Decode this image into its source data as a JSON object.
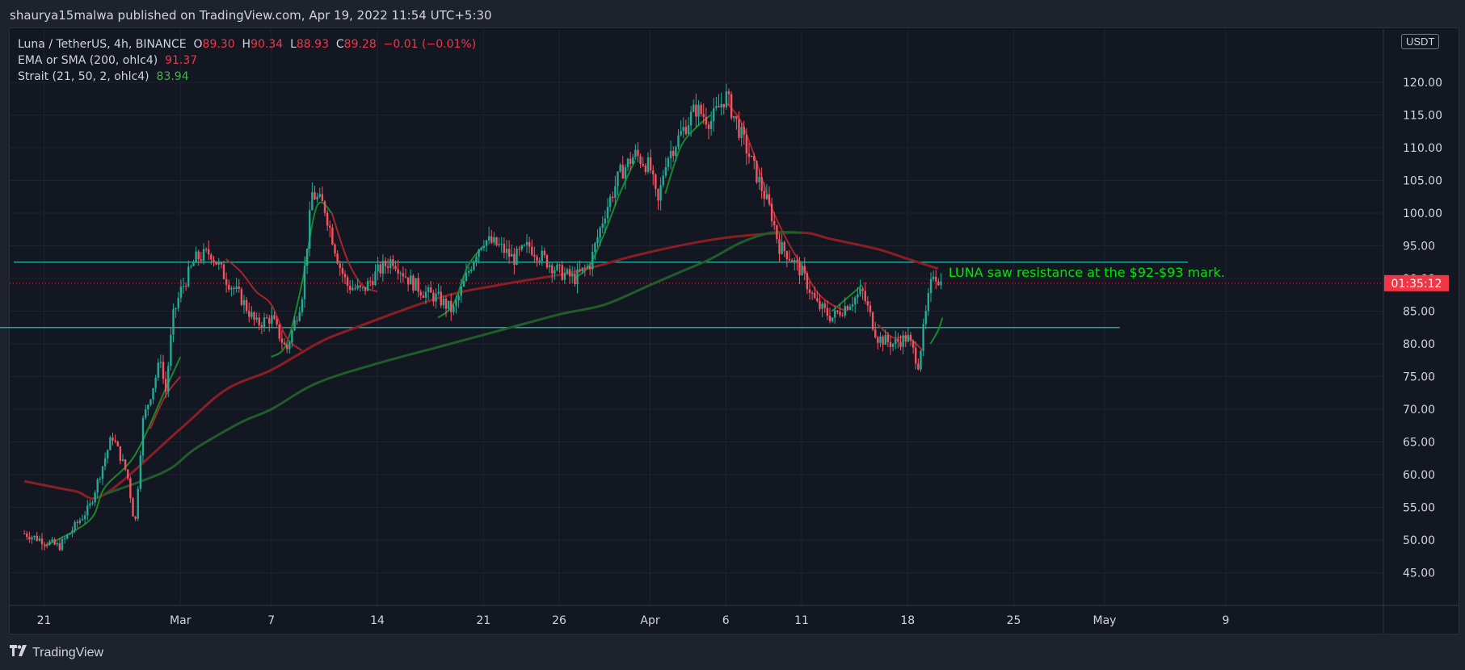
{
  "header": {
    "published": "shaurya15malwa published on TradingView.com, Apr 19, 2022 11:54 UTC+5:30"
  },
  "legend": {
    "symbol": "Luna / TetherUS, 4h, BINANCE",
    "ohlc": {
      "o_label": "O",
      "o": "89.30",
      "h_label": "H",
      "h": "90.34",
      "l_label": "L",
      "l": "88.93",
      "c_label": "C",
      "c": "89.28",
      "change": "−0.01 (−0.01%)"
    },
    "ema_label": "EMA or SMA (200, ohlc4)",
    "ema_value": "91.37",
    "strait_label": "Strait (21, 50, 2, ohlc4)",
    "strait_value": "83.94"
  },
  "price_axis": {
    "currency": "USDT",
    "current_label": "01:35:12"
  },
  "annotation": {
    "text": "LUNA saw resistance at the $92-$93 mark."
  },
  "footer": {
    "brand": "TradingView"
  },
  "colors": {
    "up": "#22ab94",
    "down": "#f7525f",
    "ema": "#8b1e24",
    "slow": "#1f5e2a",
    "fast": "#17872b",
    "level": "#26a69a",
    "annotation": "#00e600",
    "current": "#f23645"
  },
  "chart_data": {
    "type": "candlestick",
    "title": "Luna / TetherUS, 4h, BINANCE",
    "ylim": [
      40,
      125
    ],
    "y_ticks": [
      "45.00",
      "50.00",
      "55.00",
      "60.00",
      "65.00",
      "70.00",
      "75.00",
      "80.00",
      "85.00",
      "90.00",
      "95.00",
      "100.00",
      "105.00",
      "110.00",
      "115.00",
      "120.00"
    ],
    "x_ticks": [
      {
        "label": "21",
        "day": -8
      },
      {
        "label": "Mar",
        "day": 1
      },
      {
        "label": "7",
        "day": 7
      },
      {
        "label": "14",
        "day": 14
      },
      {
        "label": "21",
        "day": 21
      },
      {
        "label": "26",
        "day": 26
      },
      {
        "label": "Apr",
        "day": 32
      },
      {
        "label": "6",
        "day": 37
      },
      {
        "label": "11",
        "day": 42
      },
      {
        "label": "18",
        "day": 49
      },
      {
        "label": "25",
        "day": 56
      },
      {
        "label": "May",
        "day": 62
      },
      {
        "label": "9",
        "day": 70
      }
    ],
    "x_unit": "days since Mar 1, 2022",
    "price_path": [
      [
        -9.3,
        51
      ],
      [
        -7,
        49
      ],
      [
        -5,
        55
      ],
      [
        -3.5,
        66
      ],
      [
        -2.5,
        60
      ],
      [
        -2,
        52
      ],
      [
        -1.5,
        68
      ],
      [
        -0.5,
        76
      ],
      [
        -0.3,
        78
      ],
      [
        0,
        72
      ],
      [
        0.5,
        84
      ],
      [
        1,
        88
      ],
      [
        2,
        93
      ],
      [
        3,
        94
      ],
      [
        4,
        90
      ],
      [
        5,
        87
      ],
      [
        6,
        83
      ],
      [
        7,
        84
      ],
      [
        8,
        79
      ],
      [
        9,
        87
      ],
      [
        9.7,
        103
      ],
      [
        10.5,
        101
      ],
      [
        11.5,
        92
      ],
      [
        12,
        89
      ],
      [
        13,
        88
      ],
      [
        14,
        91
      ],
      [
        15,
        93
      ],
      [
        16,
        90
      ],
      [
        17,
        88
      ],
      [
        18,
        87
      ],
      [
        19,
        85
      ],
      [
        20,
        91
      ],
      [
        20.5,
        94
      ],
      [
        21,
        96
      ],
      [
        22,
        95
      ],
      [
        23,
        93
      ],
      [
        24,
        95
      ],
      [
        25,
        93
      ],
      [
        26,
        91
      ],
      [
        27,
        90
      ],
      [
        28,
        92
      ],
      [
        29,
        100
      ],
      [
        30,
        106
      ],
      [
        31,
        109
      ],
      [
        32,
        107
      ],
      [
        32.5,
        101
      ],
      [
        33,
        108
      ],
      [
        34,
        112
      ],
      [
        35,
        116
      ],
      [
        36,
        114
      ],
      [
        37,
        118
      ],
      [
        38,
        112
      ],
      [
        39,
        106
      ],
      [
        40,
        100
      ],
      [
        40.5,
        95
      ],
      [
        41,
        94
      ],
      [
        42,
        91
      ],
      [
        43,
        86
      ],
      [
        44,
        84
      ],
      [
        45,
        86
      ],
      [
        46,
        88
      ],
      [
        47,
        81
      ],
      [
        48,
        80
      ],
      [
        49,
        81
      ],
      [
        49.7,
        77
      ],
      [
        50.3,
        86
      ],
      [
        50.7,
        91
      ],
      [
        51.2,
        89.3
      ]
    ],
    "ema200": [
      [
        -9.3,
        59
      ],
      [
        -6,
        57.5
      ],
      [
        -4,
        57
      ],
      [
        1,
        67
      ],
      [
        4,
        73
      ],
      [
        7,
        76
      ],
      [
        10,
        80
      ],
      [
        12,
        82
      ],
      [
        18,
        87
      ],
      [
        22,
        89
      ],
      [
        27,
        91
      ],
      [
        31,
        93.5
      ],
      [
        35,
        95.5
      ],
      [
        38,
        96.5
      ],
      [
        42,
        97
      ],
      [
        44,
        96
      ],
      [
        47,
        94.5
      ],
      [
        49,
        93
      ],
      [
        51,
        91.5
      ]
    ],
    "slow_ma": [
      [
        -4,
        57
      ],
      [
        0,
        60.5
      ],
      [
        2,
        64
      ],
      [
        5,
        68
      ],
      [
        7,
        70
      ],
      [
        10,
        74
      ],
      [
        14,
        77
      ],
      [
        18,
        79.5
      ],
      [
        22,
        82
      ],
      [
        26,
        84.5
      ],
      [
        29,
        86
      ],
      [
        32,
        89
      ],
      [
        34,
        91
      ],
      [
        36,
        93
      ],
      [
        38,
        95.5
      ],
      [
        40,
        97
      ],
      [
        42,
        97
      ]
    ],
    "fast_ma_segments": [
      [
        [
          -8,
          49
        ],
        [
          -5,
          53
        ],
        [
          -4,
          58
        ],
        [
          -2,
          63
        ],
        [
          0,
          73
        ],
        [
          1,
          78
        ]
      ],
      [
        [
          7,
          78
        ],
        [
          8,
          80
        ],
        [
          9,
          89
        ],
        [
          10,
          101
        ],
        [
          11,
          100
        ]
      ],
      [
        [
          18,
          84
        ],
        [
          19,
          86
        ],
        [
          20,
          92
        ],
        [
          21,
          95
        ]
      ],
      [
        [
          27,
          90
        ],
        [
          28,
          92
        ],
        [
          29,
          97
        ],
        [
          30,
          103
        ],
        [
          31,
          108
        ]
      ],
      [
        [
          33,
          103
        ],
        [
          34,
          110
        ],
        [
          35,
          113
        ],
        [
          36,
          115
        ]
      ],
      [
        [
          44,
          85
        ],
        [
          45,
          87
        ],
        [
          46,
          89
        ]
      ],
      [
        [
          50.5,
          80
        ],
        [
          51,
          82
        ],
        [
          51.3,
          84
        ]
      ]
    ],
    "red_ma_segments": [
      [
        [
          -1,
          67
        ],
        [
          0,
          72
        ],
        [
          1,
          75
        ]
      ],
      [
        [
          4,
          93
        ],
        [
          5,
          91
        ],
        [
          6,
          88
        ],
        [
          7,
          86
        ],
        [
          8,
          81
        ],
        [
          9,
          79
        ]
      ],
      [
        [
          11,
          100
        ],
        [
          12,
          93
        ],
        [
          13,
          89
        ],
        [
          14,
          88
        ]
      ],
      [
        [
          37,
          117
        ],
        [
          38,
          114
        ],
        [
          39,
          108
        ],
        [
          40,
          101
        ],
        [
          41,
          96
        ],
        [
          42,
          92
        ],
        [
          43,
          88
        ],
        [
          44,
          86
        ],
        [
          45,
          85
        ]
      ],
      [
        [
          47,
          83
        ],
        [
          48,
          81
        ],
        [
          49,
          81
        ],
        [
          50,
          79
        ]
      ]
    ],
    "levels": [
      {
        "price": 92.5,
        "from": -10,
        "to": 67.5
      },
      {
        "price": 82.5,
        "from": -12,
        "to": 63
      }
    ],
    "current_price": 89.28,
    "last_close": "89.28"
  }
}
